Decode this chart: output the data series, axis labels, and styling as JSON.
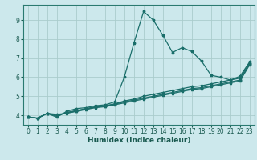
{
  "xlabel": "Humidex (Indice chaleur)",
  "bg_color": "#cce8ec",
  "grid_color": "#aacccc",
  "line_color": "#1a6e6a",
  "xlim": [
    -0.5,
    23.5
  ],
  "ylim": [
    3.5,
    9.8
  ],
  "xticks": [
    0,
    1,
    2,
    3,
    4,
    5,
    6,
    7,
    8,
    9,
    10,
    11,
    12,
    13,
    14,
    15,
    16,
    17,
    18,
    19,
    20,
    21,
    22,
    23
  ],
  "yticks": [
    4,
    5,
    6,
    7,
    8,
    9
  ],
  "lines": [
    {
      "x": [
        0,
        1,
        2,
        3,
        4,
        5,
        6,
        7,
        8,
        9,
        10,
        11,
        12,
        13,
        14,
        15,
        16,
        17,
        18,
        19,
        20,
        21,
        22,
        23
      ],
      "y": [
        3.9,
        3.85,
        4.1,
        3.9,
        4.2,
        4.35,
        4.4,
        4.5,
        4.55,
        4.7,
        6.0,
        7.8,
        9.45,
        9.0,
        8.2,
        7.3,
        7.55,
        7.35,
        6.85,
        6.1,
        6.0,
        5.85,
        6.05,
        6.8
      ]
    },
    {
      "x": [
        0,
        1,
        2,
        3,
        4,
        5,
        6,
        7,
        8,
        9,
        10,
        11,
        12,
        13,
        14,
        15,
        16,
        17,
        18,
        19,
        20,
        21,
        22,
        23
      ],
      "y": [
        3.9,
        3.85,
        4.1,
        3.95,
        4.15,
        4.25,
        4.35,
        4.45,
        4.5,
        4.6,
        4.75,
        4.85,
        5.0,
        5.1,
        5.2,
        5.3,
        5.4,
        5.5,
        5.55,
        5.65,
        5.75,
        5.85,
        5.95,
        6.75
      ]
    },
    {
      "x": [
        0,
        1,
        2,
        3,
        4,
        5,
        6,
        7,
        8,
        9,
        10,
        11,
        12,
        13,
        14,
        15,
        16,
        17,
        18,
        19,
        20,
        21,
        22,
        23
      ],
      "y": [
        3.9,
        3.85,
        4.1,
        4.0,
        4.12,
        4.22,
        4.32,
        4.42,
        4.48,
        4.58,
        4.7,
        4.8,
        4.9,
        5.0,
        5.1,
        5.2,
        5.3,
        5.4,
        5.45,
        5.55,
        5.65,
        5.75,
        5.85,
        6.7
      ]
    },
    {
      "x": [
        0,
        1,
        2,
        3,
        4,
        5,
        6,
        7,
        8,
        9,
        10,
        11,
        12,
        13,
        14,
        15,
        16,
        17,
        18,
        19,
        20,
        21,
        22,
        23
      ],
      "y": [
        3.9,
        3.85,
        4.1,
        4.05,
        4.1,
        4.2,
        4.3,
        4.4,
        4.45,
        4.55,
        4.65,
        4.75,
        4.85,
        4.95,
        5.05,
        5.15,
        5.25,
        5.35,
        5.4,
        5.5,
        5.6,
        5.7,
        5.8,
        6.65
      ]
    }
  ]
}
